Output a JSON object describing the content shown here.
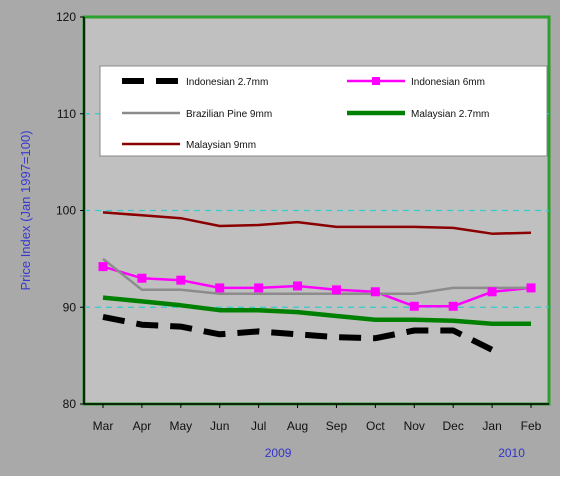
{
  "chart_data": {
    "type": "line",
    "title": "",
    "ylabel": "Price Index (Jan 1997=100)",
    "xlabel": "",
    "categories": [
      "Mar",
      "Apr",
      "May",
      "Jun",
      "Jul",
      "Aug",
      "Sep",
      "Oct",
      "Nov",
      "Dec",
      "Jan",
      "Feb"
    ],
    "year_labels": [
      {
        "text": "2009",
        "category_index": 4.5
      },
      {
        "text": "2010",
        "category_index": 10.5
      }
    ],
    "ylim": [
      80,
      120
    ],
    "yticks": [
      80,
      90,
      100,
      110,
      120
    ],
    "reference_lines": [
      90,
      100,
      110
    ],
    "grid": false,
    "legend_position": "top",
    "plot_background": "#c0c0c0",
    "outer_background": "#a9a9a9",
    "border_color": "#2ca02c",
    "reference_line_color": "#33cccc",
    "series": [
      {
        "name": "Indonesian 2.7mm",
        "color": "#000000",
        "style": "dashed",
        "marker": "none",
        "values": [
          89,
          88.2,
          88,
          87.2,
          87.5,
          87.2,
          86.9,
          86.8,
          87.6,
          87.6,
          85.6,
          null
        ]
      },
      {
        "name": "Indonesian 6mm",
        "color": "#ff00ff",
        "style": "solid",
        "marker": "square",
        "values": [
          94.2,
          93,
          92.8,
          92,
          92,
          92.2,
          91.8,
          91.6,
          90.1,
          90.1,
          91.6,
          92
        ]
      },
      {
        "name": "Brazilian Pine 9mm",
        "color": "#8c8c8c",
        "style": "solid",
        "marker": "none",
        "values": [
          95,
          91.8,
          91.8,
          91.4,
          91.4,
          91.4,
          91.4,
          91.4,
          91.4,
          92,
          92,
          92
        ]
      },
      {
        "name": "Malaysian 2.7mm",
        "color": "#008000",
        "style": "solid",
        "marker": "none",
        "values": [
          91,
          90.6,
          90.2,
          89.7,
          89.7,
          89.5,
          89.1,
          88.7,
          88.7,
          88.6,
          88.3,
          88.3
        ]
      },
      {
        "name": "Malaysian 9mm",
        "color": "#8b0000",
        "style": "solid",
        "marker": "none",
        "values": [
          99.8,
          99.5,
          99.2,
          98.4,
          98.5,
          98.8,
          98.3,
          98.3,
          98.3,
          98.2,
          97.6,
          97.7
        ]
      }
    ]
  }
}
